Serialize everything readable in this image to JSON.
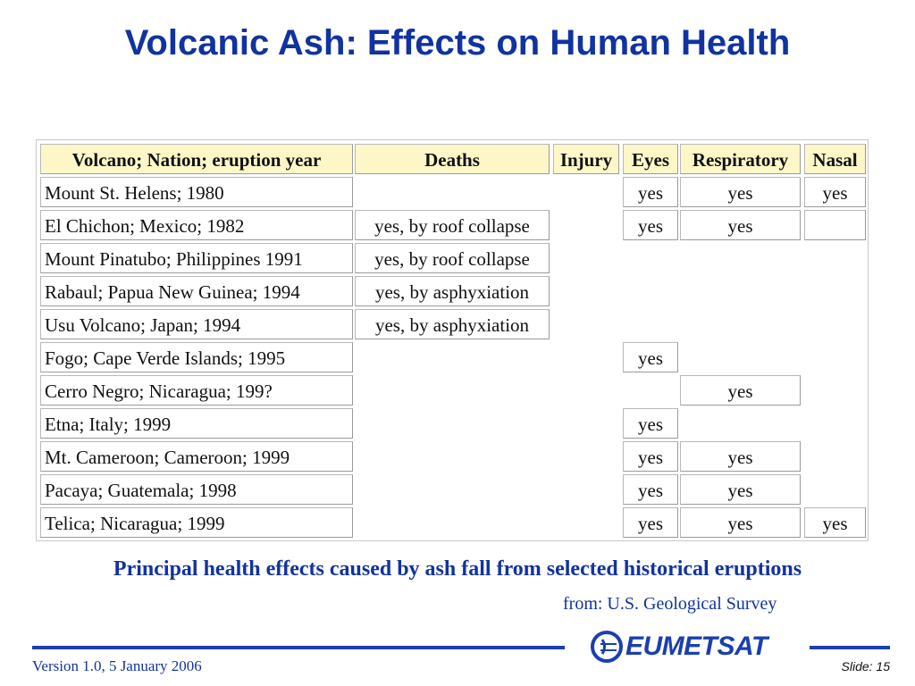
{
  "title": "Volcanic Ash: Effects on Human Health",
  "table": {
    "headers": [
      "Volcano; Nation; eruption year",
      "Deaths",
      "Injury",
      "Eyes",
      "Respiratory",
      "Nasal"
    ],
    "rows": [
      [
        "Mount St. Helens; 1980",
        "",
        "",
        "yes",
        "yes",
        "yes"
      ],
      [
        "El Chichon; Mexico; 1982",
        "yes, by roof collapse",
        "",
        "yes",
        "yes",
        "□"
      ],
      [
        "Mount Pinatubo; Philippines 1991",
        "yes, by roof collapse",
        "",
        "",
        "",
        ""
      ],
      [
        "Rabaul; Papua New Guinea; 1994",
        "yes, by asphyxiation",
        "",
        "",
        "",
        ""
      ],
      [
        "Usu Volcano; Japan; 1994",
        "yes, by asphyxiation",
        "",
        "",
        "",
        ""
      ],
      [
        "Fogo; Cape Verde Islands; 1995",
        "",
        "",
        "yes",
        "",
        ""
      ],
      [
        "Cerro Negro; Nicaragua; 199?",
        "",
        "",
        "",
        "yes",
        ""
      ],
      [
        "Etna; Italy; 1999",
        "",
        "",
        "yes",
        "",
        ""
      ],
      [
        "Mt. Cameroon; Cameroon; 1999",
        "",
        "",
        "yes",
        "yes",
        ""
      ],
      [
        "Pacaya; Guatemala; 1998",
        "",
        "",
        "yes",
        "yes",
        ""
      ],
      [
        "Telica; Nicaragua; 1999",
        "",
        "",
        "yes",
        "yes",
        "yes"
      ]
    ]
  },
  "caption": "Principal health effects caused by ash fall from selected historical eruptions",
  "source": "from: U.S. Geological Survey",
  "footer": {
    "version": "Version 1.0, 5 January 2006",
    "logo": "EUMETSAT",
    "logo_icon": "eumetsat-globe-icon",
    "slide": "Slide: 15"
  },
  "colors": {
    "title_blue": "#1133a0",
    "rule_blue": "#1a3fb0",
    "header_fill": "#fdf7c8"
  }
}
